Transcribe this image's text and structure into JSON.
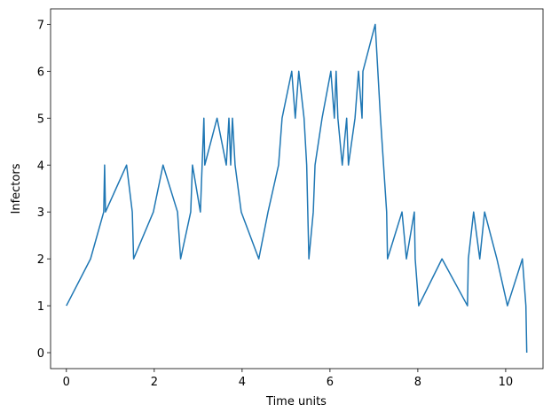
{
  "chart_data": {
    "type": "line",
    "xlabel": "Time units",
    "ylabel": "Infectors",
    "x": [
      0,
      0.55,
      0.85,
      0.87,
      0.89,
      1.37,
      1.5,
      1.53,
      1.98,
      2.2,
      2.53,
      2.6,
      2.83,
      2.87,
      3.05,
      3.13,
      3.15,
      3.43,
      3.64,
      3.7,
      3.74,
      3.78,
      3.84,
      3.98,
      4.38,
      4.59,
      4.83,
      4.91,
      5.13,
      5.21,
      5.29,
      5.41,
      5.47,
      5.52,
      5.62,
      5.66,
      5.82,
      6.02,
      6.1,
      6.14,
      6.18,
      6.28,
      6.38,
      6.42,
      6.57,
      6.65,
      6.73,
      6.75,
      7.03,
      7.15,
      7.29,
      7.31,
      7.64,
      7.74,
      7.92,
      7.94,
      8.02,
      8.55,
      9.13,
      9.15,
      9.27,
      9.41,
      9.52,
      9.8,
      10.04,
      10.38,
      10.46,
      10.48
    ],
    "series": [
      {
        "color": "#1f77b4",
        "values": [
          1,
          2,
          3,
          4,
          3,
          4,
          3,
          2,
          3,
          4,
          3,
          2,
          3,
          4,
          3,
          5,
          4,
          5,
          4,
          5,
          4,
          5,
          4,
          3,
          2,
          3,
          4,
          5,
          6,
          5,
          6,
          5,
          4,
          2,
          3,
          4,
          5,
          6,
          5,
          6,
          5,
          4,
          5,
          4,
          5,
          6,
          5,
          6,
          7,
          5,
          3,
          2,
          3,
          2,
          3,
          2,
          1,
          2,
          1,
          2,
          3,
          2,
          3,
          2,
          1,
          2,
          1,
          0
        ]
      }
    ],
    "xlim": [
      -0.36,
      10.85
    ],
    "ylim": [
      -0.34,
      7.33
    ],
    "xticks": [
      0,
      2,
      4,
      6,
      8,
      10
    ],
    "yticks": [
      0,
      1,
      2,
      3,
      4,
      5,
      6,
      7
    ]
  }
}
